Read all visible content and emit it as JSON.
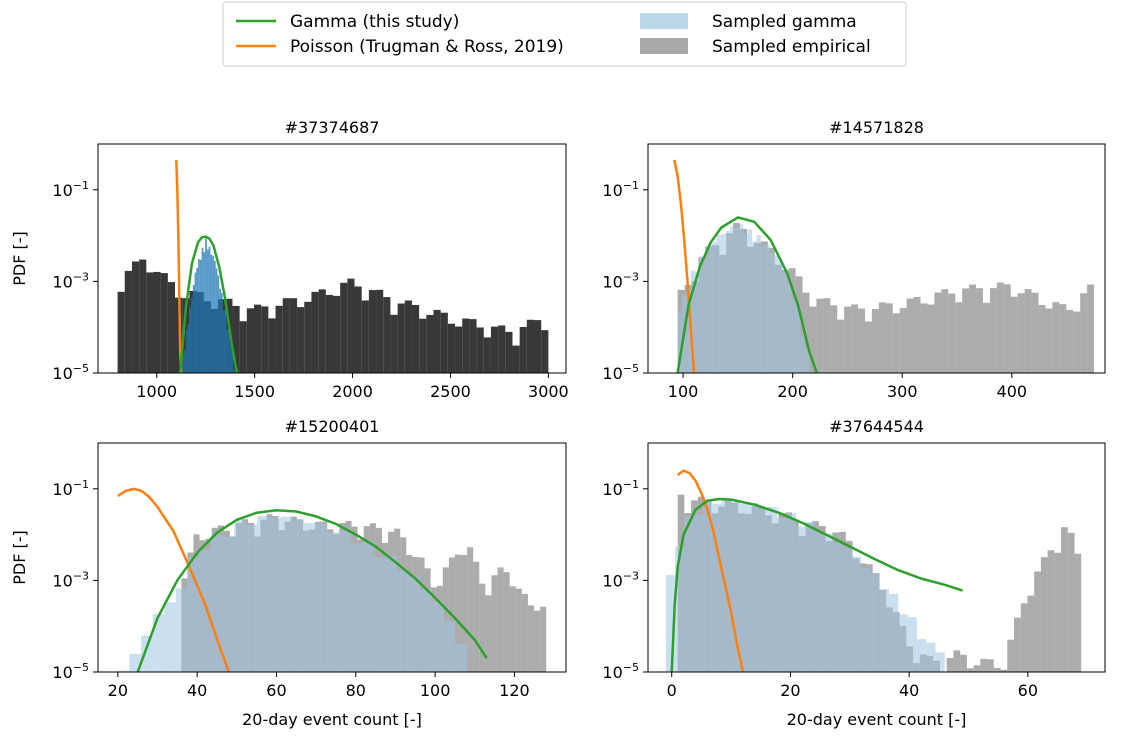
{
  "legend": {
    "items": [
      {
        "label": "Gamma (this study)",
        "kind": "line",
        "color": "#2ca02c"
      },
      {
        "label": "Poisson (Trugman & Ross, 2019)",
        "kind": "line",
        "color": "#ff7f0e"
      },
      {
        "label": "Sampled gamma",
        "kind": "patch",
        "color": "#bcd6ea"
      },
      {
        "label": "Sampled empirical",
        "kind": "patch",
        "color": "#a9a9a9"
      }
    ]
  },
  "chart_data": [
    {
      "type": "bar",
      "title": "#37374687",
      "ylabel": "PDF [-]",
      "xlabel": "",
      "yscale": "log",
      "xlim": [
        700,
        3090
      ],
      "ylim": [
        1e-05,
        1.0
      ],
      "xticks": [
        1000,
        1500,
        2000,
        2500,
        3000
      ],
      "yticks": [
        {
          "value": 0.1,
          "base": "10",
          "exp": "−1"
        },
        {
          "value": 0.001,
          "base": "10",
          "exp": "−3"
        },
        {
          "value": 1e-05,
          "base": "10",
          "exp": "−5"
        }
      ],
      "empirical": {
        "x0": 800,
        "x1": 3000,
        "envelope": [
          [
            800,
            0.0015
          ],
          [
            950,
            0.004
          ],
          [
            1100,
            0.0008
          ],
          [
            1300,
            0.0005
          ],
          [
            1500,
            0.0003
          ],
          [
            1800,
            0.0006
          ],
          [
            2000,
            0.0012
          ],
          [
            2200,
            0.0005
          ],
          [
            2500,
            0.0002
          ],
          [
            2800,
            0.0001
          ],
          [
            3000,
            0.0002
          ]
        ]
      },
      "sampled_gamma": {
        "x0": 1130,
        "x1": 1400,
        "envelope": [
          [
            1130,
            2e-05
          ],
          [
            1200,
            0.002
          ],
          [
            1250,
            0.009
          ],
          [
            1300,
            0.003
          ],
          [
            1380,
            5e-05
          ],
          [
            1400,
            1e-05
          ]
        ]
      },
      "gamma": {
        "x": [
          1120,
          1150,
          1180,
          1210,
          1230,
          1250,
          1270,
          1290,
          1320,
          1350,
          1380,
          1410
        ],
        "y": [
          1e-05,
          0.0003,
          0.0025,
          0.007,
          0.0092,
          0.0095,
          0.0085,
          0.006,
          0.002,
          0.0004,
          5e-05,
          1e-05
        ]
      },
      "poisson": {
        "x": [
          1100,
          1105,
          1110,
          1115,
          1120,
          1125
        ],
        "y": [
          0.45,
          0.1,
          0.01,
          0.0005,
          3e-05,
          1e-05
        ]
      }
    },
    {
      "type": "bar",
      "title": "#14571828",
      "ylabel": "",
      "xlabel": "",
      "yscale": "log",
      "xlim": [
        68,
        485
      ],
      "ylim": [
        1e-05,
        1.0
      ],
      "xticks": [
        100,
        200,
        300,
        400
      ],
      "yticks": [
        {
          "value": 0.1,
          "base": "10",
          "exp": "−1"
        },
        {
          "value": 0.001,
          "base": "10",
          "exp": "−3"
        },
        {
          "value": 1e-05,
          "base": "10",
          "exp": "−5"
        }
      ],
      "empirical": {
        "x0": 95,
        "x1": 475,
        "envelope": [
          [
            95,
            0.0005
          ],
          [
            120,
            0.005
          ],
          [
            150,
            0.02
          ],
          [
            180,
            0.006
          ],
          [
            200,
            0.002
          ],
          [
            220,
            0.0005
          ],
          [
            260,
            0.0003
          ],
          [
            300,
            0.0004
          ],
          [
            350,
            0.0008
          ],
          [
            400,
            0.001
          ],
          [
            450,
            0.0003
          ],
          [
            475,
            0.001
          ]
        ]
      },
      "sampled_gamma": {
        "x0": 95,
        "x1": 215,
        "envelope": [
          [
            95,
            0.0002
          ],
          [
            110,
            0.002
          ],
          [
            130,
            0.01
          ],
          [
            150,
            0.02
          ],
          [
            170,
            0.01
          ],
          [
            190,
            0.003
          ],
          [
            205,
            0.0003
          ],
          [
            215,
            2e-05
          ]
        ]
      },
      "gamma": {
        "x": [
          95,
          105,
          115,
          125,
          135,
          150,
          165,
          180,
          195,
          205,
          215,
          222
        ],
        "y": [
          1e-05,
          0.0003,
          0.002,
          0.007,
          0.015,
          0.025,
          0.02,
          0.008,
          0.0015,
          0.0003,
          3e-05,
          1e-05
        ]
      },
      "poisson": {
        "x": [
          92,
          95,
          98,
          101,
          104,
          107,
          110
        ],
        "y": [
          0.45,
          0.2,
          0.05,
          0.008,
          0.001,
          0.0001,
          1e-05
        ]
      }
    },
    {
      "type": "bar",
      "title": "#15200401",
      "ylabel": "PDF [-]",
      "xlabel": "20-day event count [-]",
      "yscale": "log",
      "xlim": [
        15,
        133
      ],
      "ylim": [
        1e-05,
        1.0
      ],
      "xticks": [
        20,
        40,
        60,
        80,
        100,
        120
      ],
      "yticks": [
        {
          "value": 0.1,
          "base": "10",
          "exp": "−1"
        },
        {
          "value": 0.001,
          "base": "10",
          "exp": "−3"
        },
        {
          "value": 1e-05,
          "base": "10",
          "exp": "−5"
        }
      ],
      "empirical": {
        "x0": 36,
        "x1": 128,
        "envelope": [
          [
            36,
            0.001
          ],
          [
            40,
            0.012
          ],
          [
            50,
            0.02
          ],
          [
            60,
            0.03
          ],
          [
            70,
            0.02
          ],
          [
            80,
            0.02
          ],
          [
            90,
            0.015
          ],
          [
            96,
            0.004
          ],
          [
            100,
            0.001
          ],
          [
            104,
            0.003
          ],
          [
            108,
            0.01
          ],
          [
            112,
            0.001
          ],
          [
            116,
            0.002
          ],
          [
            120,
            0.0015
          ],
          [
            124,
            0.0003
          ],
          [
            128,
            0.0005
          ]
        ]
      },
      "sampled_gamma": {
        "x0": 20,
        "x1": 108,
        "envelope": [
          [
            20,
            1e-05
          ],
          [
            25,
            3e-05
          ],
          [
            30,
            0.0002
          ],
          [
            35,
            0.0005
          ],
          [
            40,
            0.005
          ],
          [
            50,
            0.02
          ],
          [
            60,
            0.03
          ],
          [
            70,
            0.02
          ],
          [
            80,
            0.01
          ],
          [
            90,
            0.003
          ],
          [
            100,
            0.0005
          ],
          [
            108,
            3e-05
          ]
        ]
      },
      "gamma": {
        "x": [
          25,
          30,
          35,
          40,
          45,
          50,
          55,
          60,
          65,
          70,
          75,
          80,
          85,
          90,
          95,
          100,
          105,
          110,
          113
        ],
        "y": [
          1e-05,
          0.00015,
          0.001,
          0.004,
          0.011,
          0.021,
          0.03,
          0.034,
          0.032,
          0.025,
          0.017,
          0.01,
          0.0055,
          0.0025,
          0.0011,
          0.00042,
          0.00015,
          5e-05,
          2e-05
        ]
      },
      "poisson": {
        "x": [
          20,
          22,
          24,
          26,
          28,
          30,
          34,
          38,
          42,
          46,
          48
        ],
        "y": [
          0.07,
          0.09,
          0.1,
          0.09,
          0.065,
          0.04,
          0.012,
          0.002,
          0.0003,
          3e-05,
          1e-05
        ]
      }
    },
    {
      "type": "bar",
      "title": "#37644544",
      "ylabel": "",
      "xlabel": "20-day event count [-]",
      "yscale": "log",
      "xlim": [
        -4,
        73
      ],
      "ylim": [
        1e-05,
        1.0
      ],
      "xticks": [
        0,
        20,
        40,
        60
      ],
      "yticks": [
        {
          "value": 0.1,
          "base": "10",
          "exp": "−1"
        },
        {
          "value": 0.001,
          "base": "10",
          "exp": "−3"
        },
        {
          "value": 1e-05,
          "base": "10",
          "exp": "−5"
        }
      ],
      "empirical": {
        "x0": 1,
        "x1": 69,
        "envelope": [
          [
            1,
            0.1
          ],
          [
            4,
            0.07
          ],
          [
            8,
            0.06
          ],
          [
            12,
            0.05
          ],
          [
            16,
            0.04
          ],
          [
            20,
            0.03
          ],
          [
            24,
            0.02
          ],
          [
            28,
            0.015
          ],
          [
            32,
            0.004
          ],
          [
            36,
            0.0008
          ],
          [
            40,
            5e-05
          ],
          [
            44,
            2e-05
          ],
          [
            48,
            3e-05
          ],
          [
            52,
            2e-05
          ],
          [
            56,
            2e-05
          ],
          [
            60,
            0.0008
          ],
          [
            64,
            0.006
          ],
          [
            66,
            0.02
          ],
          [
            68,
            0.008
          ],
          [
            69,
            0.002
          ]
        ]
      },
      "sampled_gamma": {
        "x0": -1,
        "x1": 46,
        "envelope": [
          [
            -1,
            0.0005
          ],
          [
            2,
            0.02
          ],
          [
            6,
            0.06
          ],
          [
            10,
            0.06
          ],
          [
            15,
            0.05
          ],
          [
            20,
            0.03
          ],
          [
            25,
            0.015
          ],
          [
            30,
            0.005
          ],
          [
            35,
            0.0012
          ],
          [
            40,
            0.0002
          ],
          [
            43,
            5e-05
          ],
          [
            46,
            3e-05
          ]
        ]
      },
      "gamma": {
        "x": [
          0,
          0.5,
          1,
          2,
          4,
          6,
          8,
          10,
          14,
          18,
          22,
          26,
          30,
          34,
          38,
          42,
          46,
          49
        ],
        "y": [
          1e-05,
          0.0003,
          0.002,
          0.01,
          0.035,
          0.055,
          0.06,
          0.058,
          0.045,
          0.03,
          0.018,
          0.01,
          0.0055,
          0.003,
          0.0017,
          0.0011,
          0.0008,
          0.0006
        ]
      },
      "poisson": {
        "x": [
          1,
          2,
          3,
          4,
          5,
          6,
          7,
          8,
          9,
          10,
          11,
          12
        ],
        "y": [
          0.2,
          0.25,
          0.22,
          0.15,
          0.08,
          0.035,
          0.012,
          0.003,
          0.0008,
          0.0002,
          4e-05,
          1e-05
        ]
      }
    }
  ]
}
